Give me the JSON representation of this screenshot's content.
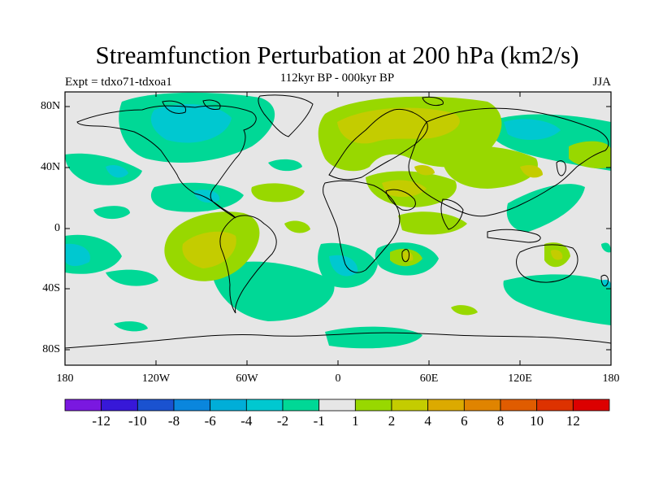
{
  "title": "Streamfunction Perturbation at 200 hPa (km2/s)",
  "subtitle": "112kyr BP - 000kyr BP",
  "left_label": "Expt = tdxo71-tdxoa1",
  "right_label": "JJA",
  "lat_ticks": [
    "80N",
    "40N",
    "0",
    "40S",
    "80S"
  ],
  "lon_ticks": [
    "180",
    "120W",
    "60W",
    "0",
    "60E",
    "120E",
    "180"
  ],
  "legend": {
    "labels": [
      "-12",
      "-10",
      "-8",
      "-6",
      "-4",
      "-2",
      "-1",
      "1",
      "2",
      "4",
      "6",
      "8",
      "10",
      "12"
    ],
    "colors": [
      "#7a18e0",
      "#3718d8",
      "#1a52d0",
      "#0a86dd",
      "#00aed8",
      "#00c8d0",
      "#00d896",
      "#e6e6e6",
      "#98d800",
      "#c4cc00",
      "#dcaa00",
      "#e08400",
      "#e05c00",
      "#dd3200",
      "#dc0000"
    ]
  },
  "colors": {
    "land_outline": "#000000",
    "neutral": "#e6e6e6",
    "neg1": "#00d896",
    "neg2": "#00c8d0",
    "pos1": "#98d800",
    "pos2": "#c4cc00"
  }
}
